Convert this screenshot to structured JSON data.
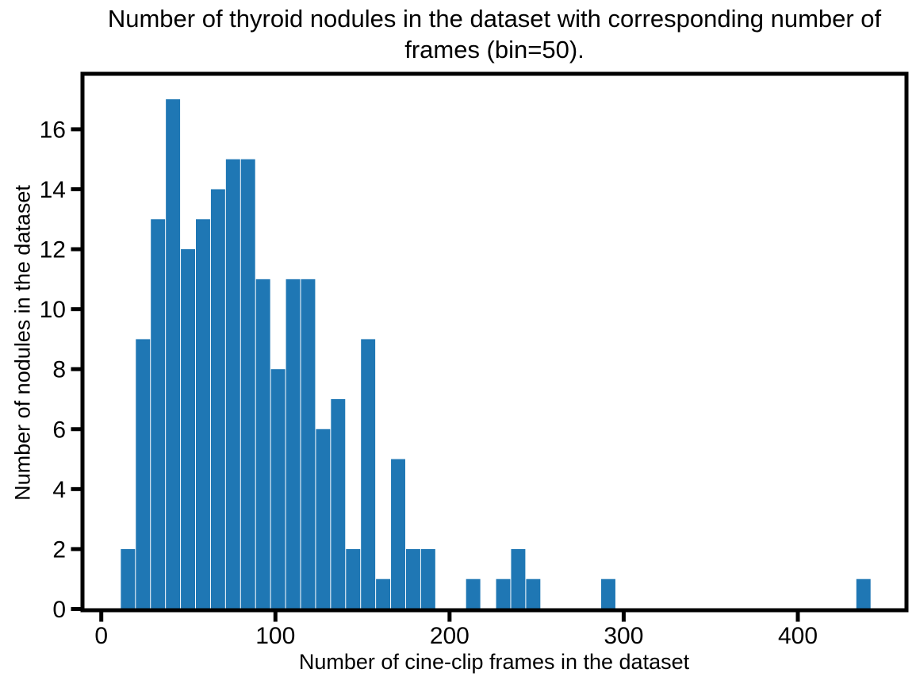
{
  "chart_data": {
    "type": "bar",
    "subtype": "histogram",
    "title": "Number of thyroid nodules in the dataset with corresponding number of frames (bin=50).",
    "xlabel": "Number of cine-clip frames in the dataset",
    "ylabel": "Number of nodules in the dataset",
    "bar_color": "#1f77b4",
    "axis_color": "#000000",
    "background_color": "#ffffff",
    "grid": false,
    "legend_position": "none",
    "n_bins": 50,
    "bin_start": 11,
    "bin_width": 8.62,
    "counts": [
      2,
      9,
      13,
      17,
      12,
      13,
      14,
      15,
      15,
      11,
      8,
      11,
      11,
      6,
      7,
      2,
      9,
      1,
      5,
      2,
      2,
      0,
      0,
      1,
      0,
      1,
      2,
      1,
      0,
      0,
      0,
      0,
      1,
      0,
      0,
      0,
      0,
      0,
      0,
      0,
      0,
      0,
      0,
      0,
      0,
      0,
      0,
      0,
      0,
      1
    ],
    "x_ticks": [
      0,
      100,
      200,
      300,
      400
    ],
    "y_ticks": [
      0,
      2,
      4,
      6,
      8,
      10,
      12,
      14,
      16
    ],
    "xlim": [
      -10.8,
      462.4
    ],
    "ylim": [
      0,
      17.85
    ]
  }
}
